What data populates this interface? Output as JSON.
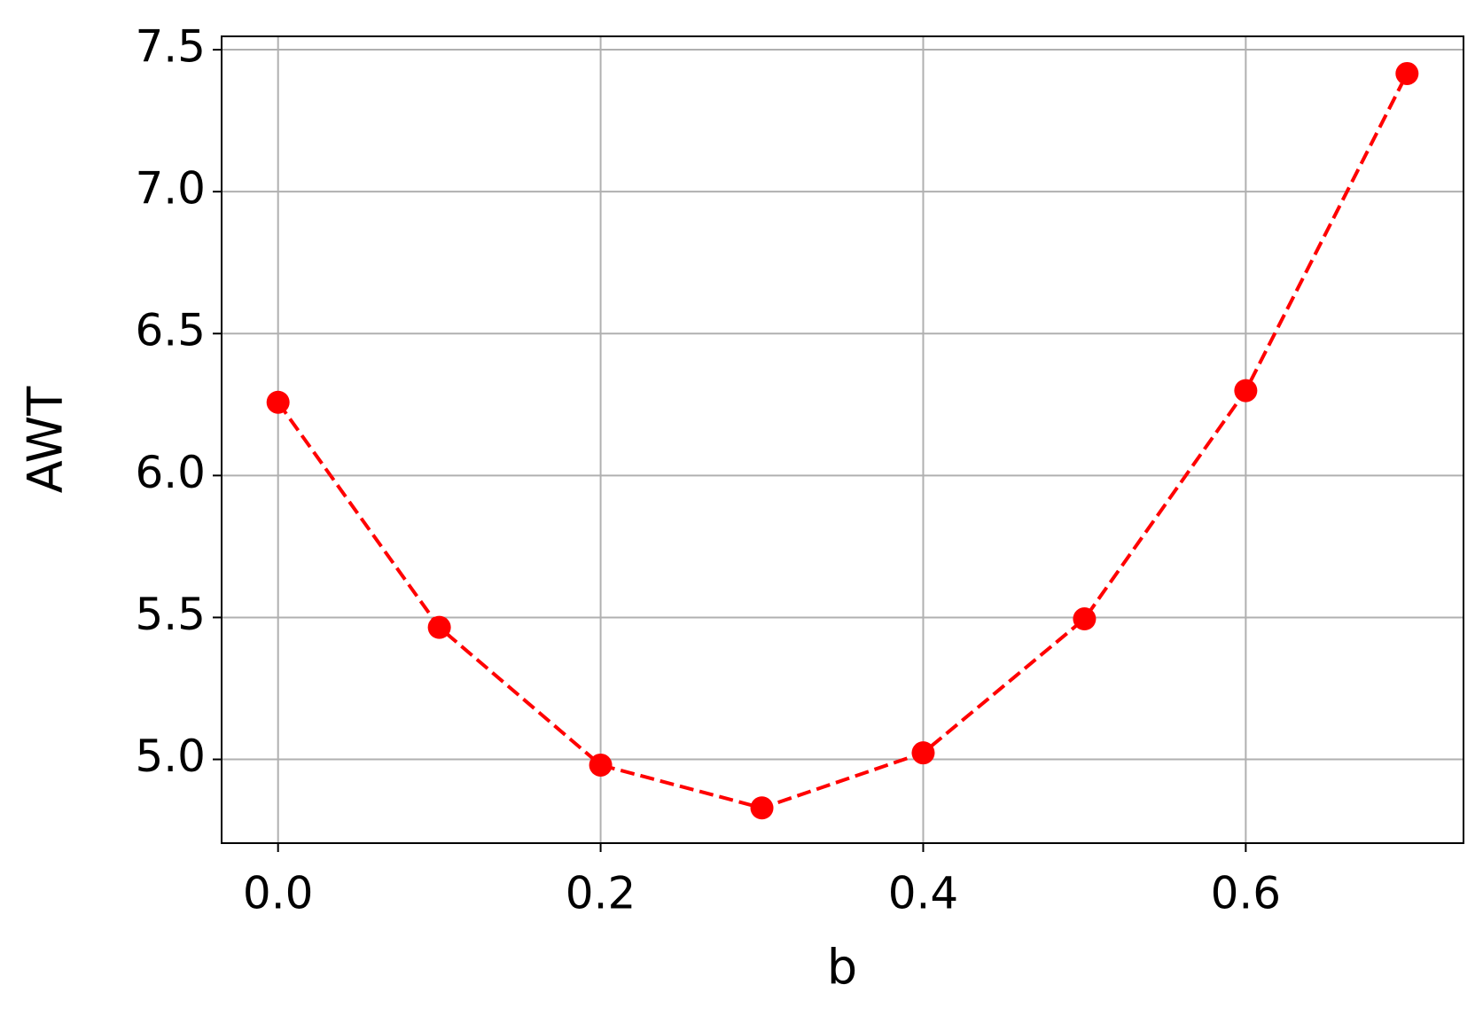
{
  "chart_data": {
    "type": "line",
    "x_label": "b",
    "y_label": "AWT",
    "x": [
      0.0,
      0.1,
      0.2,
      0.3,
      0.4,
      0.5,
      0.6,
      0.7
    ],
    "series": [
      {
        "values": [
          6.258,
          5.465,
          4.98,
          4.829,
          5.023,
          5.495,
          6.299,
          7.416
        ],
        "color": "#ff0000"
      }
    ],
    "xlim": [
      -0.035,
      0.735
    ],
    "ylim": [
      4.705,
      7.547
    ],
    "xticks": [
      {
        "value": 0,
        "label": "0.0"
      },
      0.2,
      0.4,
      0.6
    ],
    "yticks": [
      {
        "value": 5,
        "label": "5.0"
      },
      5.5,
      {
        "value": 6,
        "label": "6.0"
      },
      6.5,
      {
        "value": 7,
        "label": "7.0"
      },
      7.5
    ],
    "grid": true
  }
}
